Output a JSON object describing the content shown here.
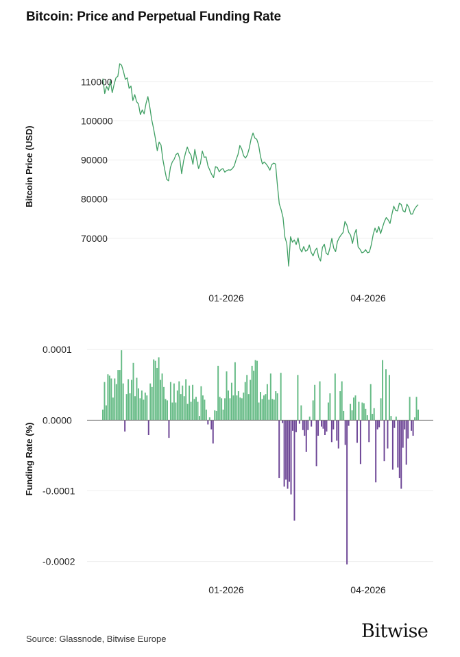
{
  "title": "Bitcoin: Price and Perpetual Funding Rate",
  "source": "Source: Glassnode, Bitwise Europe",
  "brand": "Bitwise",
  "colors": {
    "price_line": "#3f9f63",
    "positive": "#66bb86",
    "negative": "#6d4696",
    "grid": "#eeeeee",
    "zero_line": "#777777"
  },
  "chart_data": [
    {
      "type": "line",
      "ylabel": "Bitcoin Price (USD)",
      "ylim": [
        60000,
        116000
      ],
      "yticks": [
        "110000",
        "100000",
        "90000",
        "80000",
        "70000"
      ],
      "ytick_values": [
        110000,
        100000,
        90000,
        80000,
        70000
      ],
      "xtick_labels": [
        "01-2026",
        "04-2026"
      ],
      "grid": "horizontal",
      "series": [
        {
          "values": [
            110800,
            107000,
            108800,
            107800,
            110300,
            107200,
            109300,
            111000,
            111400,
            114600,
            114200,
            112600,
            110600,
            111000,
            108300,
            108900,
            105200,
            106700,
            104900,
            104300,
            101600,
            102800,
            101800,
            104400,
            106200,
            103600,
            100400,
            98100,
            95500,
            92400,
            94600,
            93800,
            90100,
            87500,
            85100,
            84700,
            88100,
            89500,
            90200,
            91400,
            91800,
            90300,
            86500,
            89700,
            91700,
            93300,
            92000,
            91200,
            88900,
            92700,
            90200,
            87800,
            89100,
            92300,
            90700,
            90800,
            88500,
            87400,
            86300,
            85500,
            88300,
            88100,
            87000,
            87600,
            87800,
            86900,
            87300,
            87500,
            87400,
            87800,
            88500,
            90100,
            91400,
            93700,
            92800,
            91100,
            90500,
            91300,
            93000,
            95400,
            96900,
            95600,
            95300,
            93800,
            90900,
            89000,
            89500,
            89000,
            88300,
            87400,
            88800,
            89200,
            89000,
            83600,
            78800,
            77300,
            75300,
            70300,
            68700,
            62900,
            70400,
            69000,
            69600,
            68400,
            70100,
            67400,
            66500,
            67900,
            66700,
            67000,
            68300,
            66400,
            65500,
            66800,
            67500,
            65100,
            64200,
            67700,
            68500,
            66200,
            65800,
            67600,
            70000,
            67500,
            66600,
            69200,
            70200,
            70900,
            71500,
            74300,
            73400,
            71500,
            70800,
            68700,
            71000,
            72300,
            67800,
            67200,
            66300,
            66500,
            67100,
            66300,
            66500,
            68300,
            70900,
            72600,
            71500,
            73000,
            71200,
            72800,
            74300,
            75300,
            74700,
            73800,
            76100,
            78200,
            77100,
            77000,
            79000,
            78600,
            77000,
            76700,
            78700,
            77900,
            76200,
            76200,
            77400,
            78100,
            78600
          ]
        }
      ]
    },
    {
      "type": "bar",
      "ylabel": "Funding Rate (%)",
      "ylim": [
        -0.00021,
        0.000105
      ],
      "yticks": [
        "0.0001",
        "0.0000",
        "-0.0001",
        "-0.0002"
      ],
      "ytick_values": [
        0.0001,
        0.0,
        -0.0001,
        -0.0002
      ],
      "xtick_labels": [
        "01-2026",
        "04-2026"
      ],
      "grid": "horizontal",
      "values": [
        1.5e-05,
        5.4e-05,
        2.1e-05,
        6.5e-05,
        6.3e-05,
        5.9e-05,
        3.2e-05,
        5.9e-05,
        5.1e-05,
        7.1e-05,
        7.1e-05,
        9.9e-05,
        5.2e-05,
        -1.6e-05,
        3.7e-05,
        5.8e-05,
        3.8e-05,
        5.7e-05,
        8.1e-05,
        3.4e-05,
        6e-05,
        4.5e-05,
        3.1e-05,
        4.2e-05,
        2.9e-05,
        3.9e-05,
        3.5e-05,
        -2.1e-05,
        5.2e-05,
        4.7e-05,
        8.6e-05,
        8.4e-05,
        7.4e-05,
        8.9e-05,
        5.7e-05,
        6.6e-05,
        4.7e-05,
        3e-05,
        2.8e-05,
        -2.5e-05,
        5.4e-05,
        2.5e-05,
        5.2e-05,
        2.5e-05,
        4.2e-05,
        5.5e-05,
        3.7e-05,
        4.9e-05,
        3.4e-05,
        5.8e-05,
        2.3e-05,
        4.9e-05,
        2.6e-05,
        5e-05,
        3e-05,
        3.3e-05,
        2.6e-05,
        6e-06,
        4.8e-05,
        3.5e-05,
        2.9e-05,
        1.5e-05,
        -6e-06,
        4e-06,
        -1.3e-05,
        -3.3e-05,
        1.4e-05,
        1.3e-05,
        7.7e-05,
        3.3e-05,
        3.1e-05,
        1.5e-05,
        3.1e-05,
        6.9e-05,
        4.2e-05,
        3.1e-05,
        5.3e-05,
        3.5e-05,
        8.2e-05,
        3.5e-05,
        4.1e-05,
        3.2e-05,
        3.1e-05,
        3.9e-05,
        5.4e-05,
        6.4e-05,
        3.7e-05,
        5.7e-05,
        7.7e-05,
        7e-05,
        8.5e-05,
        8.4e-05,
        2.5e-05,
        4e-05,
        3e-05,
        3.5e-05,
        3.7e-05,
        5.1e-05,
        2.9e-05,
        6.6e-05,
        3e-05,
        2.9e-05,
        4.1e-05,
        3.8e-05,
        -8.2e-05,
        6.7e-05,
        -4e-06,
        -9.4e-05,
        -8.4e-05,
        -9.7e-05,
        -8.7e-05,
        -0.000105,
        -1.5e-05,
        -0.000142,
        -1.7e-05,
        6.4e-05,
        -5e-06,
        2.1e-05,
        -1.4e-05,
        -2.2e-05,
        -4.5e-05,
        -1.4e-05,
        5e-06,
        -9e-06,
        2.8e-05,
        5e-05,
        -6.5e-05,
        -2.2e-05,
        5.5e-05,
        -9e-06,
        -1.2e-05,
        -2.1e-05,
        -1.6e-05,
        2.5e-05,
        3.8e-05,
        -3.1e-05,
        -1.3e-05,
        6.6e-05,
        -2.9e-05,
        -4e-05,
        4.1e-05,
        5.5e-05,
        1.3e-05,
        -3.5e-05,
        -0.000204,
        -8e-06,
        2.3e-05,
        1.4e-05,
        3.2e-05,
        3.5e-05,
        -3.2e-05,
        2.6e-05,
        -6.2e-05,
        2.5e-05,
        2.4e-05,
        1.6e-05,
        7e-06,
        -3.1e-05,
        5.1e-05,
        9e-06,
        1.7e-05,
        -8.8e-05,
        -1.3e-05,
        -1e-05,
        3.1e-05,
        8.5e-05,
        -5.8e-05,
        7.2e-05,
        -4e-05,
        6.4e-05,
        6e-06,
        -7e-05,
        -1.1e-05,
        5e-06,
        -6.7e-05,
        -8.2e-05,
        -9.7e-05,
        -3.9e-05,
        -1.3e-05,
        -6.3e-05,
        -2.6e-05,
        3.3e-05,
        -1.5e-05,
        -2.2e-05,
        4e-06,
        3.3e-05,
        1.5e-05
      ]
    }
  ]
}
